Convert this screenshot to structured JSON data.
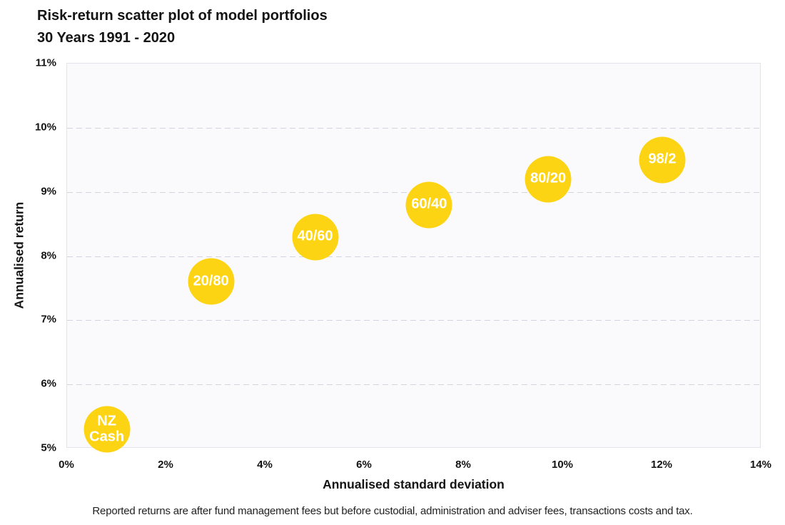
{
  "title": "Risk-return scatter plot of model portfolios",
  "subtitle": "30 Years 1991 - 2020",
  "footnote": "Reported returns are after fund management fees but before custodial, administration and adviser fees, transactions costs and tax.",
  "colors": {
    "bubble": "#FDD414",
    "bubble_label": "#FFFFFF",
    "gridline": "#D5D3DF",
    "plot_border": "#E4E3EC",
    "plot_background": "#FAFAFC",
    "text": "#141414"
  },
  "chart_data": {
    "type": "scatter",
    "title": "Risk-return scatter plot of model portfolios",
    "subtitle": "30 Years 1991 - 2020",
    "xlabel": "Annualised standard deviation",
    "ylabel": "Annualised return",
    "xlim": [
      0,
      14
    ],
    "ylim": [
      5,
      11
    ],
    "x_tick_values": [
      0,
      2,
      4,
      6,
      8,
      10,
      12,
      14
    ],
    "x_ticks": [
      "0%",
      "2%",
      "4%",
      "6%",
      "8%",
      "10%",
      "12%",
      "14%"
    ],
    "y_tick_values": [
      5,
      6,
      7,
      8,
      9,
      10,
      11
    ],
    "y_ticks": [
      "5%",
      "6%",
      "7%",
      "8%",
      "9%",
      "10%",
      "11%"
    ],
    "grid": "horizontal-dashed",
    "legend": "none",
    "points": [
      {
        "label": "NZ Cash",
        "label_lines": [
          "NZ",
          "Cash"
        ],
        "x": 0.8,
        "y": 5.3
      },
      {
        "label": "20/80",
        "label_lines": [
          "20/80"
        ],
        "x": 2.9,
        "y": 7.6
      },
      {
        "label": "40/60",
        "label_lines": [
          "40/60"
        ],
        "x": 5.0,
        "y": 8.3
      },
      {
        "label": "60/40",
        "label_lines": [
          "60/40"
        ],
        "x": 7.3,
        "y": 8.8
      },
      {
        "label": "80/20",
        "label_lines": [
          "80/20"
        ],
        "x": 9.7,
        "y": 9.2
      },
      {
        "label": "98/2",
        "label_lines": [
          "98/2"
        ],
        "x": 12.0,
        "y": 9.5
      }
    ]
  }
}
